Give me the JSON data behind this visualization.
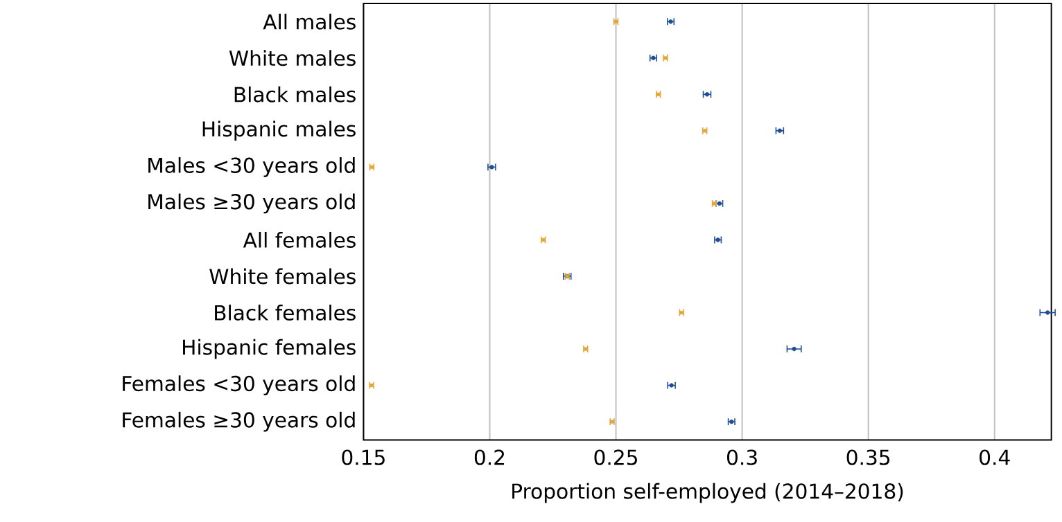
{
  "chart_data": {
    "type": "scatter",
    "orientation": "horizontal",
    "xlabel": "Proportion self-employed (2014–2018)",
    "categories": [
      "All males",
      "White males",
      "Black males",
      "Hispanic males",
      "Males <30 years old",
      "Males ≥30 years old",
      "All females",
      "White females",
      "Black females",
      "Hispanic females",
      "Females <30 years old",
      "Females ≥30 years old"
    ],
    "series": [
      {
        "color": "#e3a83c",
        "marker": "square",
        "values": [
          0.25,
          0.2696,
          0.2668,
          0.2852,
          0.1533,
          0.289,
          0.2212,
          0.2307,
          0.276,
          0.238,
          0.1532,
          0.2485
        ],
        "errors": [
          0.0008,
          0.0008,
          0.0008,
          0.0008,
          0.0008,
          0.0008,
          0.0008,
          0.0008,
          0.0008,
          0.0008,
          0.0008,
          0.0008
        ]
      },
      {
        "color": "#1f4e96",
        "marker": "circle",
        "values": [
          0.2717,
          0.2648,
          0.2861,
          0.3149,
          0.2008,
          0.291,
          0.2904,
          0.2307,
          0.421,
          0.3206,
          0.272,
          0.2958
        ],
        "errors": [
          0.0013,
          0.0013,
          0.0015,
          0.0015,
          0.0015,
          0.0013,
          0.0013,
          0.0015,
          0.003,
          0.0028,
          0.0015,
          0.0013
        ]
      }
    ],
    "xlim": [
      0.15,
      0.4225
    ],
    "xticks": [
      0.15,
      0.2,
      0.25,
      0.3,
      0.35,
      0.4
    ],
    "grid": "x"
  }
}
